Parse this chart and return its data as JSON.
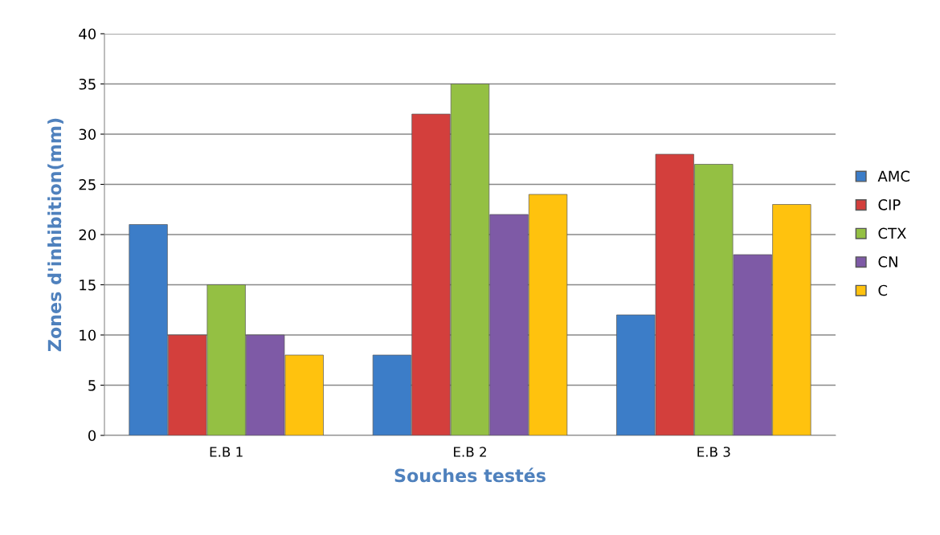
{
  "chart_data": {
    "type": "bar",
    "xlabel": "Souches testés",
    "ylabel": "Zones d'inhibition(mm)",
    "categories": [
      "E.B 1",
      "E.B 2",
      "E.B 3"
    ],
    "series": [
      {
        "name": "AMC",
        "color": "#3c7dc8",
        "values": [
          21,
          8,
          12
        ]
      },
      {
        "name": "CIP",
        "color": "#d33f3c",
        "values": [
          10,
          32,
          28
        ]
      },
      {
        "name": "CTX",
        "color": "#94c043",
        "values": [
          15,
          35,
          27
        ]
      },
      {
        "name": "CN",
        "color": "#7e5aa6",
        "values": [
          10,
          22,
          18
        ]
      },
      {
        "name": "C",
        "color": "#ffc20e",
        "values": [
          8,
          24,
          23
        ]
      }
    ],
    "ylim": [
      0,
      40
    ],
    "yticks": [
      0,
      5,
      10,
      15,
      20,
      25,
      30,
      35,
      40
    ],
    "grid": "y",
    "legend": "right"
  }
}
